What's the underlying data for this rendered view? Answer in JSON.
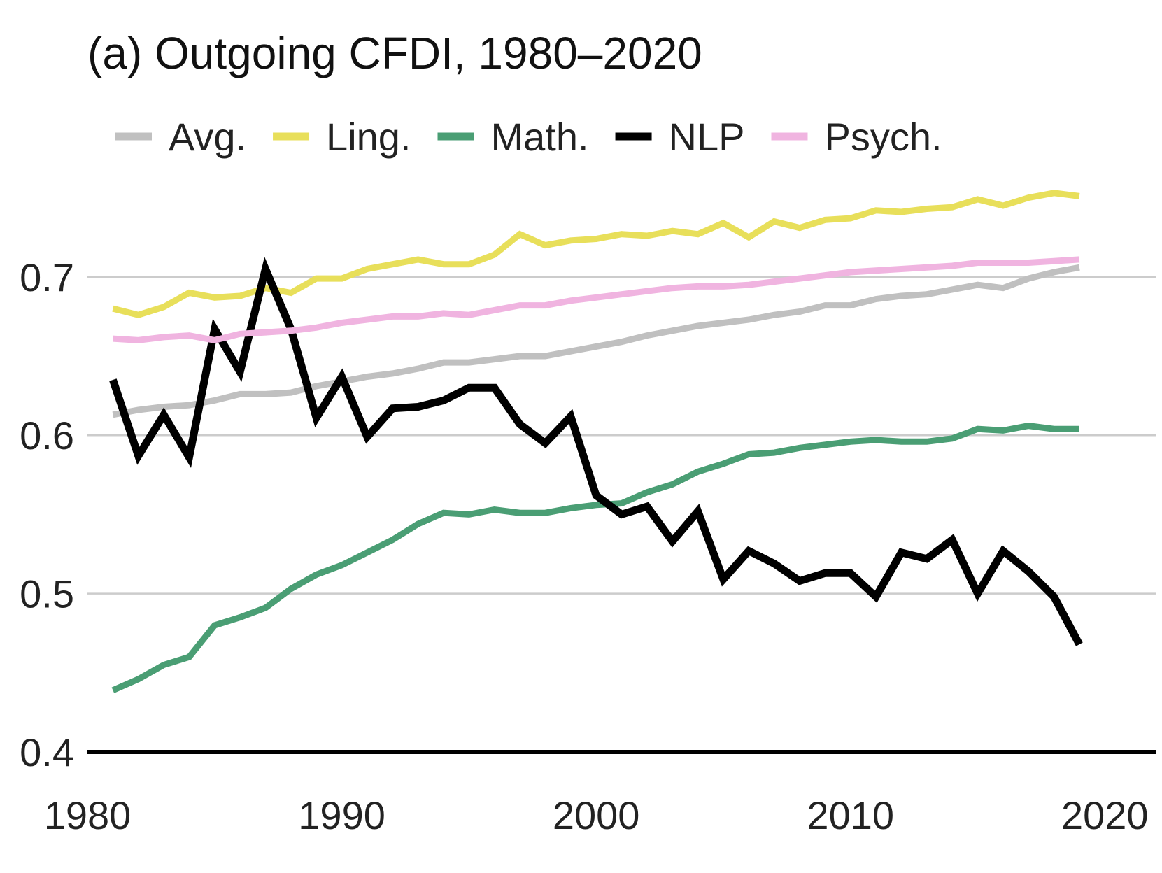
{
  "chart_data": {
    "type": "line",
    "title": "(a) Outgoing CFDI, 1980–2020",
    "xlabel": "",
    "ylabel": "",
    "xlim": [
      1980,
      2022
    ],
    "ylim": [
      0.4,
      0.76
    ],
    "x_ticks": [
      1980,
      1990,
      2000,
      2010,
      2020
    ],
    "x_tick_labels": [
      "1980",
      "1990",
      "2000",
      "2010",
      "2020"
    ],
    "y_ticks": [
      0.4,
      0.5,
      0.6,
      0.7
    ],
    "y_tick_labels": [
      "0.4",
      "0.5",
      "0.6",
      "0.7"
    ],
    "grid": true,
    "legend_position": "top",
    "x": [
      1981,
      1982,
      1983,
      1984,
      1985,
      1986,
      1987,
      1988,
      1989,
      1990,
      1991,
      1992,
      1993,
      1994,
      1995,
      1996,
      1997,
      1998,
      1999,
      2000,
      2001,
      2002,
      2003,
      2004,
      2005,
      2006,
      2007,
      2008,
      2009,
      2010,
      2011,
      2012,
      2013,
      2014,
      2015,
      2016,
      2017,
      2018,
      2019
    ],
    "series": [
      {
        "name": "Avg.",
        "color": "#c0c0c0",
        "values": [
          0.613,
          0.616,
          0.618,
          0.619,
          0.622,
          0.626,
          0.626,
          0.627,
          0.631,
          0.634,
          0.637,
          0.639,
          0.642,
          0.646,
          0.646,
          0.648,
          0.65,
          0.65,
          0.653,
          0.656,
          0.659,
          0.663,
          0.666,
          0.669,
          0.671,
          0.673,
          0.676,
          0.678,
          0.682,
          0.682,
          0.686,
          0.688,
          0.689,
          0.692,
          0.695,
          0.693,
          0.699,
          0.703,
          0.706
        ]
      },
      {
        "name": "Ling.",
        "color": "#e8df5a",
        "values": [
          0.68,
          0.676,
          0.681,
          0.69,
          0.687,
          0.688,
          0.693,
          0.69,
          0.699,
          0.699,
          0.705,
          0.708,
          0.711,
          0.708,
          0.708,
          0.714,
          0.727,
          0.72,
          0.723,
          0.724,
          0.727,
          0.726,
          0.729,
          0.727,
          0.734,
          0.725,
          0.735,
          0.731,
          0.736,
          0.737,
          0.742,
          0.741,
          0.743,
          0.744,
          0.749,
          0.745,
          0.75,
          0.753,
          0.751
        ]
      },
      {
        "name": "Math.",
        "color": "#4a9e74",
        "values": [
          0.439,
          0.446,
          0.455,
          0.46,
          0.48,
          0.485,
          0.491,
          0.503,
          0.512,
          0.518,
          0.526,
          0.534,
          0.544,
          0.551,
          0.55,
          0.553,
          0.551,
          0.551,
          0.554,
          0.556,
          0.557,
          0.564,
          0.569,
          0.577,
          0.582,
          0.588,
          0.589,
          0.592,
          0.594,
          0.596,
          0.597,
          0.596,
          0.596,
          0.598,
          0.604,
          0.603,
          0.606,
          0.604,
          0.604
        ]
      },
      {
        "name": "NLP",
        "color": "#000000",
        "values": [
          0.635,
          0.587,
          0.613,
          0.586,
          0.667,
          0.64,
          0.705,
          0.667,
          0.611,
          0.637,
          0.599,
          0.617,
          0.618,
          0.622,
          0.63,
          0.63,
          0.607,
          0.595,
          0.612,
          0.562,
          0.55,
          0.555,
          0.533,
          0.552,
          0.509,
          0.527,
          0.519,
          0.508,
          0.513,
          0.513,
          0.498,
          0.526,
          0.522,
          0.534,
          0.5,
          0.527,
          0.514,
          0.498,
          0.468
        ]
      },
      {
        "name": "Psych.",
        "color": "#f0b4e0",
        "values": [
          0.661,
          0.66,
          0.662,
          0.663,
          0.66,
          0.664,
          0.665,
          0.666,
          0.668,
          0.671,
          0.673,
          0.675,
          0.675,
          0.677,
          0.676,
          0.679,
          0.682,
          0.682,
          0.685,
          0.687,
          0.689,
          0.691,
          0.693,
          0.694,
          0.694,
          0.695,
          0.697,
          0.699,
          0.701,
          0.703,
          0.704,
          0.705,
          0.706,
          0.707,
          0.709,
          0.709,
          0.709,
          0.71,
          0.711
        ]
      }
    ]
  }
}
